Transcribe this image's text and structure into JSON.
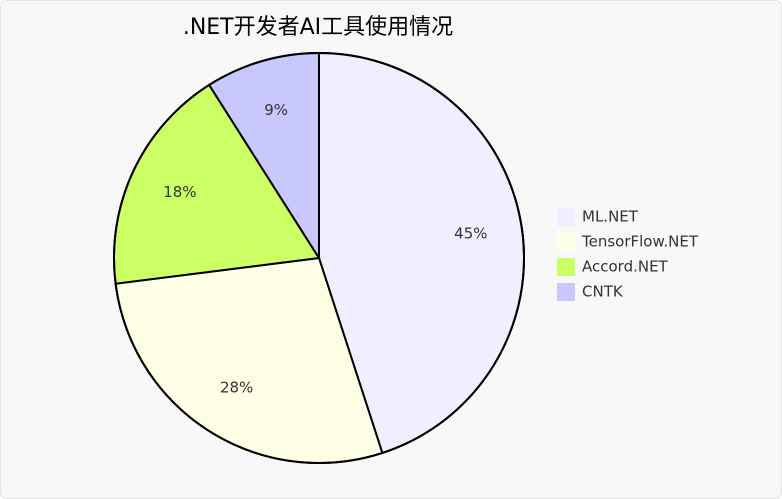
{
  "chart_data": {
    "type": "pie",
    "title": ".NET开发者AI工具使用情况",
    "categories": [
      "ML.NET",
      "TensorFlow.NET",
      "Accord.NET",
      "CNTK"
    ],
    "values": [
      45,
      28,
      18,
      9
    ],
    "value_labels": [
      "45%",
      "28%",
      "18%",
      "9%"
    ],
    "colors": [
      "#efefff",
      "#ffffe6",
      "#ccff66",
      "#c8c8ff"
    ],
    "legend": "right"
  }
}
